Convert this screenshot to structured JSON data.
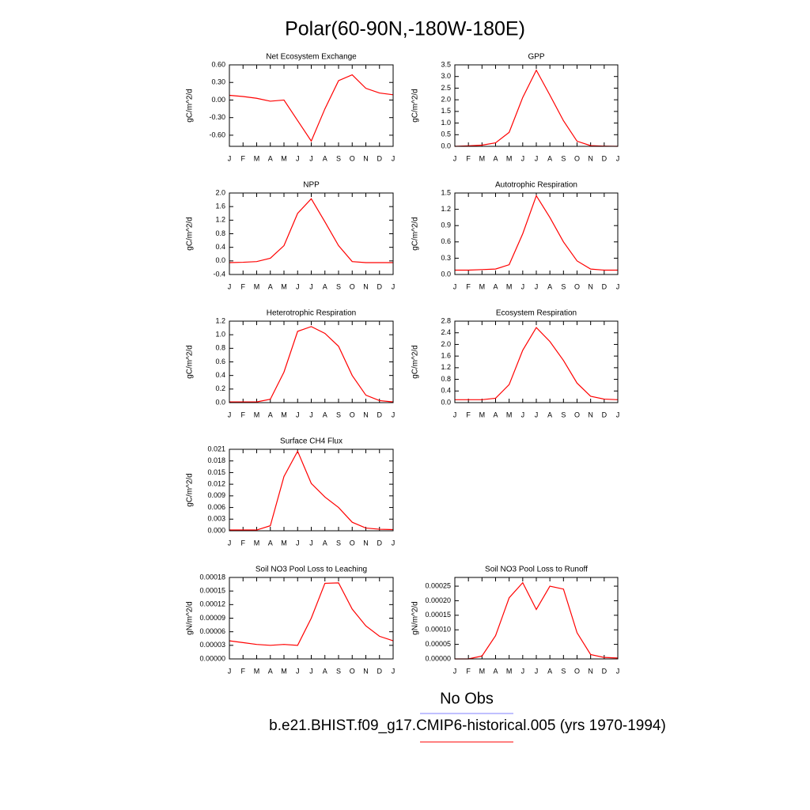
{
  "title": "Polar(60-90N,-180W-180E)",
  "legend": [
    {
      "name": "No Obs",
      "color": "#8080ff"
    },
    {
      "name": "b.e21.BHIST.f09_g17.CMIP6-historical.005 (yrs 1970-1994)",
      "color": "#ff0000"
    }
  ],
  "chart_data": [
    {
      "type": "line",
      "title": "Net Ecosystem Exchange",
      "y_label": "gC/m^2/d",
      "color": "#ff0000",
      "categories": [
        "J",
        "F",
        "M",
        "A",
        "M",
        "J",
        "J",
        "A",
        "S",
        "O",
        "N",
        "D",
        "J"
      ],
      "values": [
        0.08,
        0.06,
        0.03,
        -0.02,
        0.0,
        -0.35,
        -0.7,
        -0.15,
        0.33,
        0.43,
        0.2,
        0.12,
        0.09
      ],
      "ylim": [
        -0.79,
        0.6
      ],
      "yticks": [
        {
          "value": -0.6,
          "label": "-0.60"
        },
        {
          "value": -0.3,
          "label": "-0.30"
        },
        {
          "value": 0,
          "label": "0.00"
        },
        {
          "value": 0.3,
          "label": "0.30"
        },
        {
          "value": 0.6,
          "label": "0.60"
        }
      ]
    },
    {
      "type": "line",
      "title": "GPP",
      "y_label": "gC/m^2/d",
      "color": "#ff0000",
      "categories": [
        "J",
        "F",
        "M",
        "A",
        "M",
        "J",
        "J",
        "A",
        "S",
        "O",
        "N",
        "D",
        "J"
      ],
      "values": [
        0.0,
        0.02,
        0.05,
        0.15,
        0.6,
        2.1,
        3.27,
        2.2,
        1.1,
        0.22,
        0.03,
        0.01,
        0.0
      ],
      "ylim": [
        0,
        3.5
      ],
      "yticks": [
        {
          "value": 0,
          "label": "0.0"
        },
        0.5,
        {
          "value": 1,
          "label": "1.0"
        },
        1.5,
        {
          "value": 2,
          "label": "2.0"
        },
        2.5,
        {
          "value": 3,
          "label": "3.0"
        },
        3.5
      ]
    },
    {
      "type": "line",
      "title": "NPP",
      "y_label": "gC/m^2/d",
      "color": "#ff0000",
      "categories": [
        "J",
        "F",
        "M",
        "A",
        "M",
        "J",
        "J",
        "A",
        "S",
        "O",
        "N",
        "D",
        "J"
      ],
      "values": [
        -0.05,
        -0.04,
        -0.02,
        0.08,
        0.45,
        1.4,
        1.83,
        1.15,
        0.45,
        -0.02,
        -0.05,
        -0.05,
        -0.05
      ],
      "ylim": [
        -0.4,
        2.0
      ],
      "yticks": [
        -0.4,
        {
          "value": 0,
          "label": "0.0"
        },
        0.4,
        0.8,
        1.2,
        1.6,
        {
          "value": 2,
          "label": "2.0"
        }
      ]
    },
    {
      "type": "line",
      "title": "Autotrophic Respiration",
      "y_label": "gC/m^2/d",
      "color": "#ff0000",
      "categories": [
        "J",
        "F",
        "M",
        "A",
        "M",
        "J",
        "J",
        "A",
        "S",
        "O",
        "N",
        "D",
        "J"
      ],
      "values": [
        0.08,
        0.08,
        0.09,
        0.1,
        0.18,
        0.75,
        1.45,
        1.05,
        0.6,
        0.25,
        0.1,
        0.08,
        0.08
      ],
      "ylim": [
        0,
        1.5
      ],
      "yticks": [
        {
          "value": 0,
          "label": "0.0"
        },
        0.3,
        0.6,
        0.9,
        1.2,
        1.5
      ]
    },
    {
      "type": "line",
      "title": "Heterotrophic Respiration",
      "y_label": "gC/m^2/d",
      "color": "#ff0000",
      "categories": [
        "J",
        "F",
        "M",
        "A",
        "M",
        "J",
        "J",
        "A",
        "S",
        "O",
        "N",
        "D",
        "J"
      ],
      "values": [
        0.01,
        0.01,
        0.01,
        0.05,
        0.45,
        1.05,
        1.12,
        1.02,
        0.83,
        0.4,
        0.11,
        0.03,
        0.01
      ],
      "ylim": [
        0,
        1.2
      ],
      "yticks": [
        {
          "value": 0,
          "label": "0.0"
        },
        0.2,
        0.4,
        0.6,
        0.8,
        {
          "value": 1,
          "label": "1.0"
        },
        1.2
      ]
    },
    {
      "type": "line",
      "title": "Ecosystem Respiration",
      "y_label": "gC/m^2/d",
      "color": "#ff0000",
      "categories": [
        "J",
        "F",
        "M",
        "A",
        "M",
        "J",
        "J",
        "A",
        "S",
        "O",
        "N",
        "D",
        "J"
      ],
      "values": [
        0.1,
        0.1,
        0.1,
        0.15,
        0.62,
        1.8,
        2.58,
        2.1,
        1.45,
        0.67,
        0.22,
        0.12,
        0.1
      ],
      "ylim": [
        0,
        2.8
      ],
      "yticks": [
        {
          "value": 0,
          "label": "0.0"
        },
        0.4,
        0.8,
        1.2,
        1.6,
        {
          "value": 2,
          "label": "2.0"
        },
        2.4,
        2.8
      ]
    },
    {
      "type": "line",
      "title": "Surface CH4 Flux",
      "y_label": "gC/m^2/d",
      "color": "#ff0000",
      "categories": [
        "J",
        "F",
        "M",
        "A",
        "M",
        "J",
        "J",
        "A",
        "S",
        "O",
        "N",
        "D",
        "J"
      ],
      "values": [
        0.0002,
        0.0002,
        0.0002,
        0.0013,
        0.014,
        0.0205,
        0.0122,
        0.0087,
        0.006,
        0.0022,
        0.0007,
        0.0004,
        0.0003
      ],
      "ylim": [
        0,
        0.021
      ],
      "yticks": [
        {
          "value": 0,
          "label": "0.000"
        },
        0.003,
        0.006,
        0.009,
        0.012,
        0.015,
        0.018,
        0.021
      ]
    },
    {
      "type": "line",
      "title": "Soil NO3 Pool Loss to Leaching",
      "y_label": "gN/m^2/d",
      "color": "#ff0000",
      "categories": [
        "J",
        "F",
        "M",
        "A",
        "M",
        "J",
        "J",
        "A",
        "S",
        "O",
        "N",
        "D",
        "J"
      ],
      "values": [
        4e-05,
        3.6e-05,
        3.2e-05,
        3e-05,
        3.2e-05,
        3e-05,
        9e-05,
        0.000167,
        0.000168,
        0.00011,
        7.3e-05,
        5e-05,
        4e-05
      ],
      "ylim": [
        0,
        0.00018
      ],
      "yticks": [
        {
          "value": 0,
          "label": "0.00000"
        },
        3e-05,
        6e-05,
        9e-05,
        0.00012,
        0.00015,
        0.00018
      ]
    },
    {
      "type": "line",
      "title": "Soil NO3 Pool Loss to Runoff",
      "y_label": "gN/m^2/d",
      "color": "#ff0000",
      "categories": [
        "J",
        "F",
        "M",
        "A",
        "M",
        "J",
        "J",
        "A",
        "S",
        "O",
        "N",
        "D",
        "J"
      ],
      "values": [
        0.0,
        0.0,
        1e-05,
        8e-05,
        0.00021,
        0.000262,
        0.00017,
        0.00025,
        0.00024,
        9e-05,
        1.5e-05,
        5e-06,
        3e-06
      ],
      "ylim": [
        0,
        0.00028
      ],
      "yticks": [
        {
          "value": 0,
          "label": "0.00000"
        },
        5e-05,
        {
          "value": 0.0001,
          "label": "0.00010"
        },
        0.00015,
        {
          "value": 0.0002,
          "label": "0.00020"
        },
        0.00025
      ]
    }
  ]
}
